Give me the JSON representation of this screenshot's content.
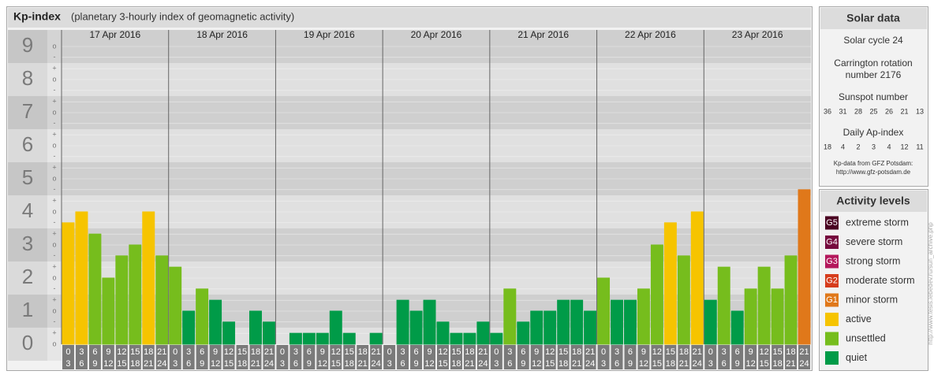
{
  "chart_data": {
    "type": "bar",
    "title": "Kp-index",
    "subtitle": "(planetary 3-hourly index of geomagnetic activity)",
    "categories": [
      "17 Apr 2016",
      "18 Apr 2016",
      "19 Apr 2016",
      "20 Apr 2016",
      "21 Apr 2016",
      "22 Apr 2016",
      "23 Apr 2016"
    ],
    "hours": [
      [
        0,
        3
      ],
      [
        3,
        6
      ],
      [
        6,
        9
      ],
      [
        9,
        12
      ],
      [
        12,
        15
      ],
      [
        15,
        18
      ],
      [
        18,
        21
      ],
      [
        21,
        24
      ]
    ],
    "values": [
      [
        3.67,
        4,
        3.33,
        2,
        2.67,
        3,
        4,
        2.67
      ],
      [
        2.33,
        1,
        1.67,
        1.33,
        0.67,
        0,
        1,
        0.67
      ],
      [
        0,
        0.33,
        0.33,
        0.33,
        1,
        0.33,
        0,
        0.33
      ],
      [
        0,
        1.33,
        1,
        1.33,
        0.67,
        0.33,
        0.33,
        0.67
      ],
      [
        0.33,
        1.67,
        0.67,
        1,
        1,
        1.33,
        1.33,
        1
      ],
      [
        2,
        1.33,
        1.33,
        1.67,
        3,
        3.67,
        2.67,
        4
      ],
      [
        1.33,
        2.33,
        1,
        1.67,
        2.33,
        1.67,
        2.67,
        4.67
      ]
    ],
    "colors": [
      [
        "#f6c400",
        "#f6c400",
        "#76bd1d",
        "#76bd1d",
        "#76bd1d",
        "#76bd1d",
        "#f6c400",
        "#76bd1d"
      ],
      [
        "#76bd1d",
        "#009b48",
        "#76bd1d",
        "#009b48",
        "#009b48",
        "#009b48",
        "#009b48",
        "#009b48"
      ],
      [
        "#009b48",
        "#009b48",
        "#009b48",
        "#009b48",
        "#009b48",
        "#009b48",
        "#009b48",
        "#009b48"
      ],
      [
        "#009b48",
        "#009b48",
        "#009b48",
        "#009b48",
        "#009b48",
        "#009b48",
        "#009b48",
        "#009b48"
      ],
      [
        "#009b48",
        "#76bd1d",
        "#009b48",
        "#009b48",
        "#009b48",
        "#009b48",
        "#009b48",
        "#009b48"
      ],
      [
        "#76bd1d",
        "#009b48",
        "#009b48",
        "#76bd1d",
        "#76bd1d",
        "#f6c400",
        "#76bd1d",
        "#f6c400"
      ],
      [
        "#009b48",
        "#76bd1d",
        "#009b48",
        "#76bd1d",
        "#76bd1d",
        "#76bd1d",
        "#76bd1d",
        "#e0781a"
      ]
    ],
    "ylim": [
      0,
      9.5
    ],
    "yticks": [
      0,
      1,
      2,
      3,
      4,
      5,
      6,
      7,
      8,
      9
    ],
    "minor_ticks": [
      {
        "value": 0,
        "label": "o"
      },
      {
        "value": 0.33,
        "label": "+"
      },
      {
        "value": 0.67,
        "label": "-"
      },
      {
        "value": 1,
        "label": "o"
      },
      {
        "value": 1.33,
        "label": "+"
      },
      {
        "value": 1.67,
        "label": "-"
      },
      {
        "value": 2,
        "label": "o"
      },
      {
        "value": 2.33,
        "label": "+"
      },
      {
        "value": 2.67,
        "label": "-"
      },
      {
        "value": 3,
        "label": "o"
      },
      {
        "value": 3.33,
        "label": "+"
      },
      {
        "value": 3.67,
        "label": "-"
      },
      {
        "value": 4,
        "label": "o"
      },
      {
        "value": 4.33,
        "label": "+"
      },
      {
        "value": 4.67,
        "label": "-"
      },
      {
        "value": 5,
        "label": "o"
      },
      {
        "value": 5.33,
        "label": "+"
      },
      {
        "value": 5.67,
        "label": "-"
      },
      {
        "value": 6,
        "label": "o"
      },
      {
        "value": 6.33,
        "label": "+"
      },
      {
        "value": 6.67,
        "label": "-"
      },
      {
        "value": 7,
        "label": "o"
      },
      {
        "value": 7.33,
        "label": "+"
      },
      {
        "value": 7.67,
        "label": "-"
      },
      {
        "value": 8,
        "label": "o"
      },
      {
        "value": 8.33,
        "label": "+"
      },
      {
        "value": 8.67,
        "label": "-"
      },
      {
        "value": 9,
        "label": "o"
      }
    ]
  },
  "solar_data": {
    "title": "Solar data",
    "cycle": "Solar cycle 24",
    "carrington_1": "Carrington rotation",
    "carrington_2": "number 2176",
    "sunspot_title": "Sunspot number",
    "sunspot_numbers": [
      36,
      31,
      28,
      25,
      26,
      21,
      13
    ],
    "ap_title": "Daily Ap-index",
    "ap_values": [
      18,
      4,
      2,
      3,
      4,
      12,
      11
    ],
    "source_1": "Kp-data from GFZ Potsdam:",
    "source_2": "http://www.gfz-potsdam.de"
  },
  "activity_levels": {
    "title": "Activity levels",
    "items": [
      {
        "code": "G5",
        "label": "extreme storm",
        "color": "#4a0021"
      },
      {
        "code": "G4",
        "label": "severe storm",
        "color": "#760a3e"
      },
      {
        "code": "G3",
        "label": "strong storm",
        "color": "#b4185c"
      },
      {
        "code": "G2",
        "label": "moderate storm",
        "color": "#d63c1c"
      },
      {
        "code": "G1",
        "label": "minor storm",
        "color": "#e0781a"
      },
      {
        "label": "active",
        "color": "#f6c400"
      },
      {
        "label": "unsettled",
        "color": "#76bd1d"
      },
      {
        "label": "quiet",
        "color": "#009b48"
      }
    ]
  },
  "side_url": "http://www.tesis.lebedev.ru/sun_archive.php"
}
